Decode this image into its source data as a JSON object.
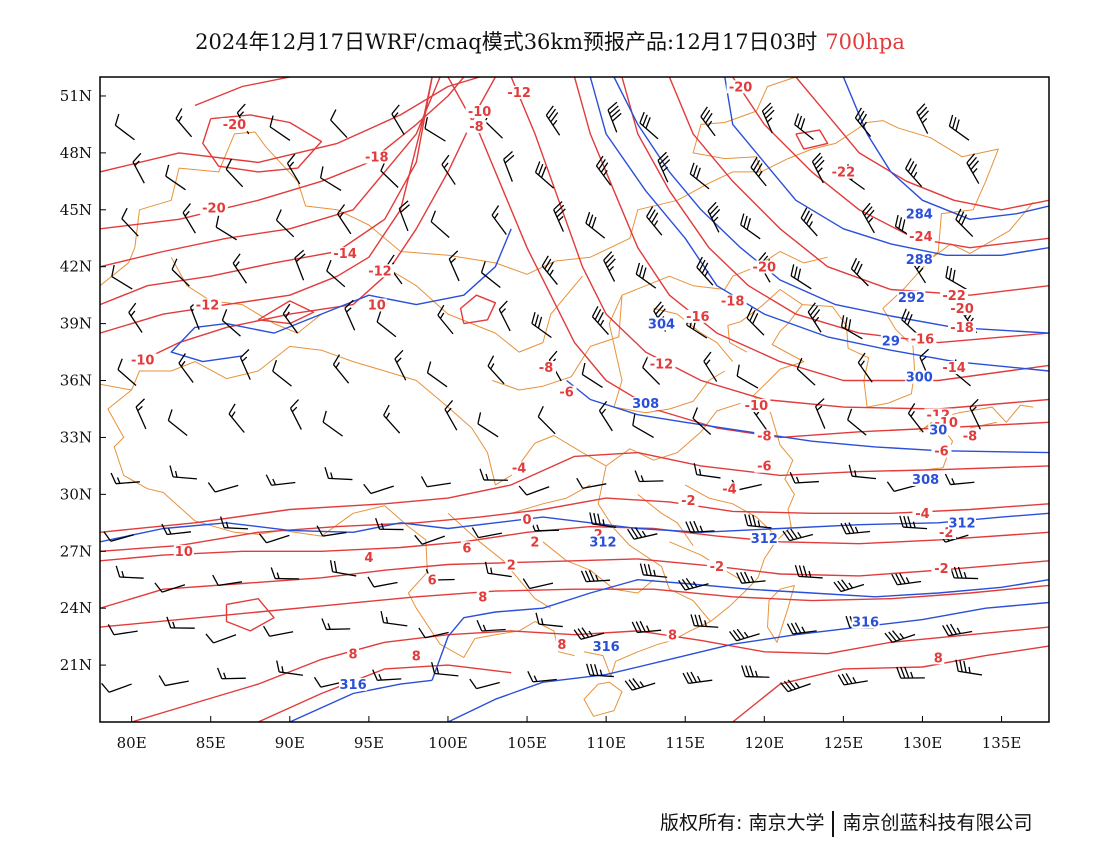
{
  "title": {
    "main": "2024年12月17日WRF/cmaq模式36km预报产品:12月17日03时",
    "level": "700hpa"
  },
  "colors": {
    "temperature_contour": "#e23b3b",
    "height_contour": "#2a4fd9",
    "coastline": "#e8923a",
    "wind_barb": "#000000",
    "frame": "#000000"
  },
  "map": {
    "projection": "lat-lon",
    "lon_range": [
      78,
      138
    ],
    "lat_range": [
      18,
      52
    ],
    "x_ticks": [
      "80E",
      "85E",
      "90E",
      "95E",
      "100E",
      "105E",
      "110E",
      "115E",
      "120E",
      "125E",
      "130E",
      "135E"
    ],
    "x_tick_values": [
      80,
      85,
      90,
      95,
      100,
      105,
      110,
      115,
      120,
      125,
      130,
      135
    ],
    "y_ticks": [
      "51N",
      "48N",
      "45N",
      "42N",
      "39N",
      "36N",
      "33N",
      "30N",
      "27N",
      "24N",
      "21N"
    ],
    "y_tick_values": [
      51,
      48,
      45,
      42,
      39,
      36,
      33,
      30,
      27,
      24,
      21
    ],
    "temperature_labels": [
      {
        "text": "-12",
        "lon": 104.5,
        "lat": 51.0
      },
      {
        "text": "-10",
        "lon": 102.0,
        "lat": 50.0
      },
      {
        "text": "-8",
        "lon": 101.8,
        "lat": 49.2
      },
      {
        "text": "-20",
        "lon": 86.5,
        "lat": 49.3
      },
      {
        "text": "-18",
        "lon": 95.5,
        "lat": 47.6
      },
      {
        "text": "-20",
        "lon": 85.2,
        "lat": 44.9
      },
      {
        "text": "-14",
        "lon": 93.5,
        "lat": 42.5
      },
      {
        "text": "-12",
        "lon": 95.7,
        "lat": 41.6
      },
      {
        "text": "-12",
        "lon": 84.8,
        "lat": 39.8
      },
      {
        "text": "10",
        "lon": 95.5,
        "lat": 39.8
      },
      {
        "text": "-10",
        "lon": 80.7,
        "lat": 36.9
      },
      {
        "text": "-20",
        "lon": 118.5,
        "lat": 51.3
      },
      {
        "text": "-22",
        "lon": 125.0,
        "lat": 46.8
      },
      {
        "text": "-24",
        "lon": 129.9,
        "lat": 43.4
      },
      {
        "text": "-22",
        "lon": 132.0,
        "lat": 40.3
      },
      {
        "text": "-20",
        "lon": 120.0,
        "lat": 41.8
      },
      {
        "text": "-18",
        "lon": 118.0,
        "lat": 40.0
      },
      {
        "text": "-16",
        "lon": 115.8,
        "lat": 39.2
      },
      {
        "text": "-20",
        "lon": 132.5,
        "lat": 39.6
      },
      {
        "text": "-18",
        "lon": 132.5,
        "lat": 38.6
      },
      {
        "text": "-16",
        "lon": 130.0,
        "lat": 38.0
      },
      {
        "text": "-14",
        "lon": 132.0,
        "lat": 36.5
      },
      {
        "text": "-12",
        "lon": 113.5,
        "lat": 36.7
      },
      {
        "text": "-12",
        "lon": 131.0,
        "lat": 34.0
      },
      {
        "text": "-10",
        "lon": 119.5,
        "lat": 34.5
      },
      {
        "text": "-10",
        "lon": 131.5,
        "lat": 33.6
      },
      {
        "text": "-8",
        "lon": 106.2,
        "lat": 36.5
      },
      {
        "text": "-6",
        "lon": 107.5,
        "lat": 35.2
      },
      {
        "text": "-8",
        "lon": 120.0,
        "lat": 32.9
      },
      {
        "text": "-8",
        "lon": 133.0,
        "lat": 32.9
      },
      {
        "text": "-6",
        "lon": 120.0,
        "lat": 31.3
      },
      {
        "text": "-6",
        "lon": 131.2,
        "lat": 32.1
      },
      {
        "text": "-4",
        "lon": 104.5,
        "lat": 31.2
      },
      {
        "text": "-4",
        "lon": 117.8,
        "lat": 30.1
      },
      {
        "text": "-2",
        "lon": 115.2,
        "lat": 29.5
      },
      {
        "text": "-4",
        "lon": 130.0,
        "lat": 28.8
      },
      {
        "text": "-2",
        "lon": 131.5,
        "lat": 27.8
      },
      {
        "text": "-2",
        "lon": 131.2,
        "lat": 25.9
      },
      {
        "text": "-2",
        "lon": 117.0,
        "lat": 26.0
      },
      {
        "text": "0",
        "lon": 105.0,
        "lat": 28.5
      },
      {
        "text": "2",
        "lon": 105.5,
        "lat": 27.3
      },
      {
        "text": "2",
        "lon": 109.5,
        "lat": 27.7
      },
      {
        "text": "6",
        "lon": 101.2,
        "lat": 27.0
      },
      {
        "text": "4",
        "lon": 95.0,
        "lat": 26.5
      },
      {
        "text": "10",
        "lon": 83.3,
        "lat": 26.8
      },
      {
        "text": "6",
        "lon": 99.0,
        "lat": 25.3
      },
      {
        "text": "2",
        "lon": 104.0,
        "lat": 26.1
      },
      {
        "text": "8",
        "lon": 102.2,
        "lat": 24.4
      },
      {
        "text": "8",
        "lon": 107.2,
        "lat": 21.9
      },
      {
        "text": "8",
        "lon": 114.2,
        "lat": 22.4
      },
      {
        "text": "8",
        "lon": 131.0,
        "lat": 21.2
      },
      {
        "text": "8",
        "lon": 98.0,
        "lat": 21.3
      },
      {
        "text": "8",
        "lon": 94.0,
        "lat": 21.4
      }
    ],
    "height_labels": [
      {
        "text": "284",
        "lon": 129.8,
        "lat": 44.6
      },
      {
        "text": "288",
        "lon": 129.8,
        "lat": 42.2
      },
      {
        "text": "292",
        "lon": 129.3,
        "lat": 40.2
      },
      {
        "text": "29",
        "lon": 128.0,
        "lat": 37.9
      },
      {
        "text": "300",
        "lon": 129.8,
        "lat": 36.0
      },
      {
        "text": "30",
        "lon": 131.0,
        "lat": 33.2
      },
      {
        "text": "304",
        "lon": 113.5,
        "lat": 38.8
      },
      {
        "text": "308",
        "lon": 112.5,
        "lat": 34.6
      },
      {
        "text": "308",
        "lon": 130.2,
        "lat": 30.6
      },
      {
        "text": "312",
        "lon": 132.5,
        "lat": 28.3
      },
      {
        "text": "312",
        "lon": 109.8,
        "lat": 27.3
      },
      {
        "text": "312",
        "lon": 120.0,
        "lat": 27.5
      },
      {
        "text": "316",
        "lon": 126.4,
        "lat": 23.1
      },
      {
        "text": "316",
        "lon": 110.0,
        "lat": 21.8
      },
      {
        "text": "316",
        "lon": 94.0,
        "lat": 19.8
      }
    ]
  },
  "footer": {
    "copyright_left": "版权所有: 南京大学",
    "copyright_right": "南京创蓝科技有限公司"
  }
}
